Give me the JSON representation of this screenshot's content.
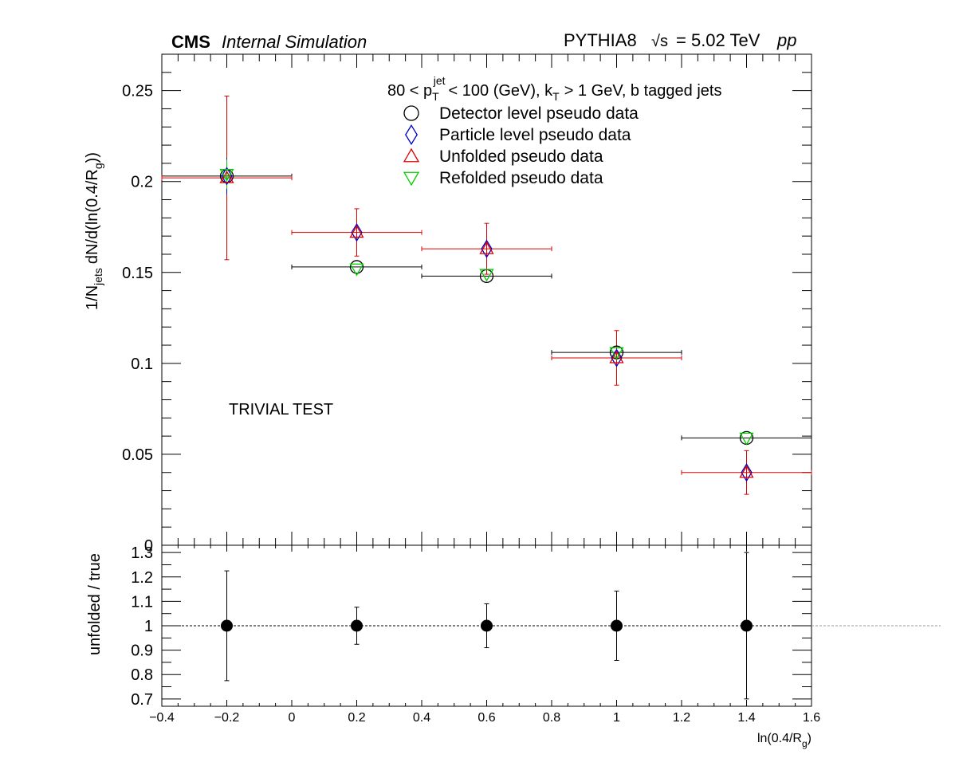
{
  "header": {
    "cms": "CMS",
    "status": "Internal Simulation",
    "generator": "PYTHIA8",
    "sqrt_s_symbol": "√s",
    "energy": "= 5.02 TeV",
    "collision": "pp"
  },
  "cuts": {
    "prefix": "80 < p",
    "p_sub": "T",
    "p_sup": "jet",
    "mid": "< 100 (GeV), k",
    "k_sub": "T",
    "suffix": "> 1 GeV, b tagged jets"
  },
  "annotation": "TRIVIAL TEST",
  "ylabel_top": {
    "a": "1/N",
    "a_sub": "jets",
    "b": "dN/d(ln(0.4/R",
    "b_sub": "g",
    "c": "))"
  },
  "ylabel_bottom": "unfolded / true",
  "xlabel": {
    "a": "ln(0.4/R",
    "a_sub": "g",
    "b": ")"
  },
  "legend": [
    {
      "label": "Detector level pseudo data",
      "marker": "circle",
      "color": "#000000"
    },
    {
      "label": "Particle level pseudo data",
      "marker": "diamond",
      "color": "#0000cc"
    },
    {
      "label": "Unfolded pseudo data",
      "marker": "triangle-up",
      "color": "#dd0000"
    },
    {
      "label": "Refolded pseudo data",
      "marker": "triangle-down",
      "color": "#00cc00"
    }
  ],
  "chart_data": [
    {
      "type": "scatter",
      "panel": "top",
      "xlim": [
        -0.4,
        1.6
      ],
      "ylim": [
        0,
        0.27
      ],
      "yticks": [
        0,
        0.05,
        0.1,
        0.15,
        0.2,
        0.25
      ],
      "ytick_labels": [
        "0",
        "0.05",
        "0.1",
        "0.15",
        "0.2",
        "0.25"
      ],
      "series": [
        {
          "name": "Detector level pseudo data",
          "color": "#000000",
          "marker": "circle",
          "points": [
            {
              "x": -0.2,
              "xlo": -0.4,
              "xhi": 0.0,
              "y": 0.203,
              "yerr": 0
            },
            {
              "x": 0.2,
              "xlo": 0.0,
              "xhi": 0.4,
              "y": 0.153,
              "yerr": 0
            },
            {
              "x": 0.6,
              "xlo": 0.4,
              "xhi": 0.8,
              "y": 0.148,
              "yerr": 0
            },
            {
              "x": 1.0,
              "xlo": 0.8,
              "xhi": 1.2,
              "y": 0.106,
              "yerr": 0
            },
            {
              "x": 1.4,
              "xlo": 1.2,
              "xhi": 1.6,
              "y": 0.059,
              "yerr": 0
            }
          ]
        },
        {
          "name": "Particle level pseudo data",
          "color": "#0000cc",
          "marker": "diamond",
          "points": [
            {
              "x": -0.2,
              "xlo": -0.4,
              "xhi": 0.0,
              "y": 0.203,
              "yerr": 0.01
            },
            {
              "x": 0.2,
              "xlo": 0.0,
              "xhi": 0.4,
              "y": 0.172,
              "yerr": 0
            },
            {
              "x": 0.6,
              "xlo": 0.4,
              "xhi": 0.8,
              "y": 0.163,
              "yerr": 0
            },
            {
              "x": 1.0,
              "xlo": 0.8,
              "xhi": 1.2,
              "y": 0.103,
              "yerr": 0
            },
            {
              "x": 1.4,
              "xlo": 1.2,
              "xhi": 1.6,
              "y": 0.04,
              "yerr": 0
            }
          ]
        },
        {
          "name": "Unfolded pseudo data",
          "color": "#dd0000",
          "marker": "triangle-up",
          "points": [
            {
              "x": -0.2,
              "xlo": -0.4,
              "xhi": 0.0,
              "y": 0.202,
              "yerr": 0.045
            },
            {
              "x": 0.2,
              "xlo": 0.0,
              "xhi": 0.4,
              "y": 0.172,
              "yerr": 0.013
            },
            {
              "x": 0.6,
              "xlo": 0.4,
              "xhi": 0.8,
              "y": 0.163,
              "yerr": 0.014
            },
            {
              "x": 1.0,
              "xlo": 0.8,
              "xhi": 1.2,
              "y": 0.103,
              "yerr": 0.015
            },
            {
              "x": 1.4,
              "xlo": 1.2,
              "xhi": 1.6,
              "y": 0.04,
              "yerr": 0.012
            }
          ]
        },
        {
          "name": "Refolded pseudo data",
          "color": "#00cc00",
          "marker": "triangle-down",
          "points": [
            {
              "x": -0.2,
              "xlo": -0.4,
              "xhi": 0.0,
              "y": 0.204,
              "yerr": 0.008
            },
            {
              "x": 0.2,
              "xlo": 0.0,
              "xhi": 0.4,
              "y": 0.152,
              "yerr": 0
            },
            {
              "x": 0.6,
              "xlo": 0.4,
              "xhi": 0.8,
              "y": 0.149,
              "yerr": 0
            },
            {
              "x": 1.0,
              "xlo": 0.8,
              "xhi": 1.2,
              "y": 0.106,
              "yerr": 0
            },
            {
              "x": 1.4,
              "xlo": 1.2,
              "xhi": 1.6,
              "y": 0.059,
              "yerr": 0
            }
          ]
        }
      ]
    },
    {
      "type": "scatter",
      "panel": "ratio",
      "xlim": [
        -0.4,
        1.6
      ],
      "ylim": [
        0.67,
        1.33
      ],
      "xticks": [
        -0.4,
        -0.2,
        0,
        0.2,
        0.4,
        0.6,
        0.8,
        1,
        1.2,
        1.4,
        1.6
      ],
      "xtick_labels": [
        "−0.4",
        "−0.2",
        "0",
        "0.2",
        "0.4",
        "0.6",
        "0.8",
        "1",
        "1.2",
        "1.4",
        "1.6"
      ],
      "yticks": [
        0.7,
        0.8,
        0.9,
        1,
        1.1,
        1.2,
        1.3
      ],
      "ytick_labels": [
        "0.7",
        "0.8",
        "0.9",
        "1",
        "1.1",
        "1.2",
        "1.3"
      ],
      "reference_line": 1,
      "series": [
        {
          "name": "unfolded / true",
          "color": "#000000",
          "marker": "circle-filled",
          "points": [
            {
              "x": -0.2,
              "y": 1.0,
              "yerr": 0.225
            },
            {
              "x": 0.2,
              "y": 1.0,
              "yerr": 0.076
            },
            {
              "x": 0.6,
              "y": 1.0,
              "yerr": 0.09
            },
            {
              "x": 1.0,
              "y": 1.0,
              "yerr": 0.142
            },
            {
              "x": 1.4,
              "y": 1.0,
              "yerr": 0.3
            }
          ]
        }
      ]
    }
  ]
}
